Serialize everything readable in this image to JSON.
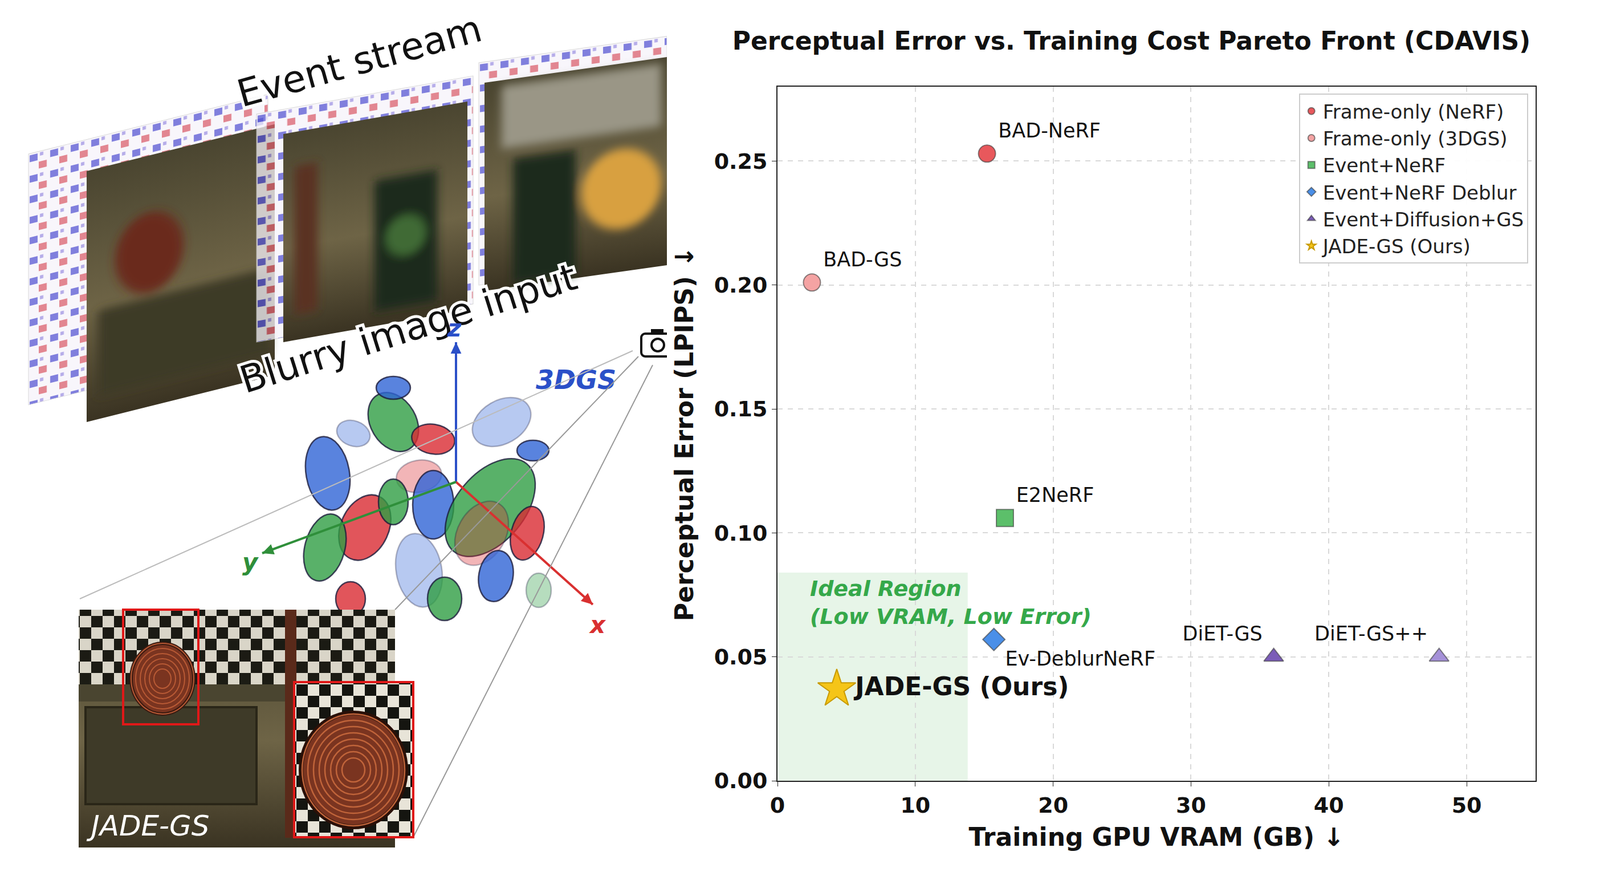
{
  "chart_data": {
    "type": "scatter",
    "title": "Perceptual Error vs. Training Cost Pareto Front (CDAVIS)",
    "x_label": "Training GPU VRAM (GB) ↓",
    "y_label": "Perceptual Error (LPIPS) ↓",
    "xlim": [
      0,
      55
    ],
    "xticks": [
      0,
      10,
      20,
      30,
      40,
      50
    ],
    "ylim": [
      0,
      0.28
    ],
    "yticks": [
      {
        "value": 0,
        "label": "0.00"
      },
      {
        "value": 0.05,
        "label": "0.05"
      },
      {
        "value": 0.1,
        "label": "0.10"
      },
      {
        "value": 0.15,
        "label": "0.15"
      },
      {
        "value": 0.2,
        "label": "0.20"
      },
      {
        "value": 0.25,
        "label": "0.25"
      }
    ],
    "grid": true,
    "legend": "upper right",
    "series": [
      {
        "name": "Frame-only (NeRF)",
        "color": "#e8585c",
        "marker": "circle",
        "x": [
          15.2
        ],
        "values": [
          0.253
        ],
        "labels": [
          "BAD-NeRF"
        ]
      },
      {
        "name": "Frame-only (3DGS)",
        "color": "#f4a3a3",
        "marker": "circle",
        "x": [
          2.5
        ],
        "values": [
          0.201
        ],
        "labels": [
          "BAD-GS"
        ]
      },
      {
        "name": "Event+NeRF",
        "color": "#5cbf6a",
        "marker": "square",
        "x": [
          16.5
        ],
        "values": [
          0.106
        ],
        "labels": [
          "E2NeRF"
        ]
      },
      {
        "name": "Event+NeRF Deblur",
        "color": "#4a8fe8",
        "marker": "diamond",
        "x": [
          15.7
        ],
        "values": [
          0.057
        ],
        "labels": [
          "Ev-DeblurNeRF"
        ]
      },
      {
        "name": "Event+Diffusion+GS",
        "color": "#7b5cb8",
        "colors": [
          "#7b5cb8",
          "#a591d8"
        ],
        "marker": "triangle-up",
        "x": [
          36,
          48
        ],
        "values": [
          0.05,
          0.05
        ],
        "labels": [
          "DiET-GS",
          "DiET-GS++"
        ]
      },
      {
        "name": "JADE-GS (Ours)",
        "color": "#f5c518",
        "marker": "star",
        "x": [
          4.3
        ],
        "values": [
          0.037
        ],
        "labels": [
          "JADE-GS (Ours)"
        ]
      }
    ],
    "region": {
      "text": "Ideal Region\n(Low VRAM, Low Error)",
      "x": [
        0,
        13.8
      ],
      "y": [
        0,
        0.084
      ]
    }
  },
  "illustration": {
    "event_label": "Event stream",
    "blurry_label": "Blurry image input",
    "gs_label": "3DGS",
    "axes": [
      "x",
      "y",
      "z"
    ],
    "result_label": "JADE-GS"
  }
}
